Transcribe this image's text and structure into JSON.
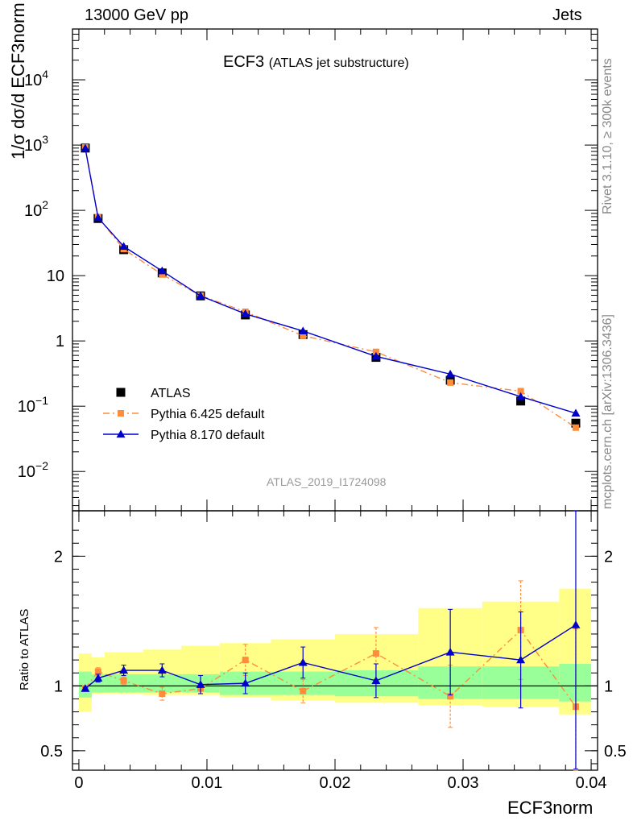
{
  "header": {
    "energy_label": "13000 GeV pp",
    "process_label": "Jets",
    "plot_title": "ECF3",
    "plot_subtitle": "(ATLAS jet substructure)",
    "analysis_id": "ATLAS_2019_I1724098"
  },
  "side_labels": {
    "rivet": "Rivet 3.1.10, ≥ 300k events",
    "mcplots": "mcplots.cern.ch [arXiv:1306.3436]"
  },
  "axes": {
    "ylabel_top": "1/σ dσ/d ECF3norm",
    "ylabel_ratio": "Ratio to ATLAS",
    "xlabel": "ECF3norm"
  },
  "colors": {
    "data": "#000000",
    "pythia6": "#ff8c3a",
    "pythia8": "#0000cc",
    "band_inner": "#99ff99",
    "band_outer": "#ffff88"
  },
  "chart_data": {
    "type": "scatter",
    "x_bin_edges": [
      0.0,
      0.001,
      0.002,
      0.005,
      0.008,
      0.011,
      0.015,
      0.02,
      0.0265,
      0.0315,
      0.0375,
      0.04
    ],
    "x": [
      0.0005,
      0.0015,
      0.0035,
      0.0065,
      0.0095,
      0.013,
      0.0175,
      0.0232,
      0.029,
      0.0345,
      0.0388
    ],
    "xlim": [
      -0.0005,
      0.0405
    ],
    "ylim_top": [
      0.0025,
      60000
    ],
    "y_scale_top": "log",
    "ylim_ratio": [
      0.35,
      2.35
    ],
    "x_ticks": [
      "0",
      "0.01",
      "0.02",
      "0.03",
      "0.04"
    ],
    "y_ticks_top": [
      "10^-2",
      "10^-1",
      "1",
      "10",
      "10^2",
      "10^3",
      "10^4"
    ],
    "y_ticks_ratio": [
      "0.5",
      "1",
      "2"
    ],
    "legend_position": "bottom-left",
    "series": [
      {
        "name": "ATLAS",
        "marker": "square",
        "values": [
          900,
          75,
          25,
          11,
          4.9,
          2.5,
          1.25,
          0.56,
          0.25,
          0.12,
          0.055
        ],
        "ratio": [
          1,
          1,
          1,
          1,
          1,
          1,
          1,
          1,
          1,
          1,
          1
        ],
        "band_inner": [
          [
            0.91,
            1.11
          ],
          [
            0.95,
            1.09
          ],
          [
            0.95,
            1.09
          ],
          [
            0.95,
            1.09
          ],
          [
            0.95,
            1.09
          ],
          [
            0.93,
            1.11
          ],
          [
            0.93,
            1.11
          ],
          [
            0.92,
            1.12
          ],
          [
            0.9,
            1.15
          ],
          [
            0.9,
            1.15
          ],
          [
            0.88,
            1.17
          ]
        ],
        "band_outer": [
          [
            0.8,
            1.25
          ],
          [
            0.94,
            1.22
          ],
          [
            0.94,
            1.26
          ],
          [
            0.93,
            1.28
          ],
          [
            0.93,
            1.31
          ],
          [
            0.91,
            1.33
          ],
          [
            0.89,
            1.36
          ],
          [
            0.87,
            1.4
          ],
          [
            0.85,
            1.6
          ],
          [
            0.84,
            1.65
          ],
          [
            0.78,
            1.75
          ]
        ]
      },
      {
        "name": "Pythia 6.425 default",
        "marker": "square",
        "style": "dash-dot",
        "values": [
          920,
          78,
          25.5,
          10.4,
          4.95,
          2.8,
          1.2,
          0.68,
          0.23,
          0.17,
          0.047
        ],
        "ratio": [
          0.98,
          1.11,
          1.04,
          0.94,
          0.98,
          1.2,
          0.96,
          1.25,
          0.92,
          1.43,
          0.84
        ],
        "ratio_err": [
          0.01,
          0.03,
          0.03,
          0.05,
          0.04,
          0.12,
          0.09,
          0.2,
          0.24,
          0.38,
          0.6
        ]
      },
      {
        "name": "Pythia 8.170 default",
        "marker": "triangle",
        "style": "solid",
        "values": [
          890,
          77,
          28,
          11.8,
          4.9,
          2.6,
          1.42,
          0.58,
          0.31,
          0.14,
          0.078
        ],
        "ratio": [
          0.98,
          1.06,
          1.12,
          1.12,
          1.01,
          1.02,
          1.18,
          1.04,
          1.26,
          1.2,
          1.47
        ],
        "ratio_err": [
          0.01,
          0.03,
          0.04,
          0.05,
          0.07,
          0.08,
          0.12,
          0.13,
          0.33,
          0.37,
          1.11
        ]
      }
    ]
  }
}
